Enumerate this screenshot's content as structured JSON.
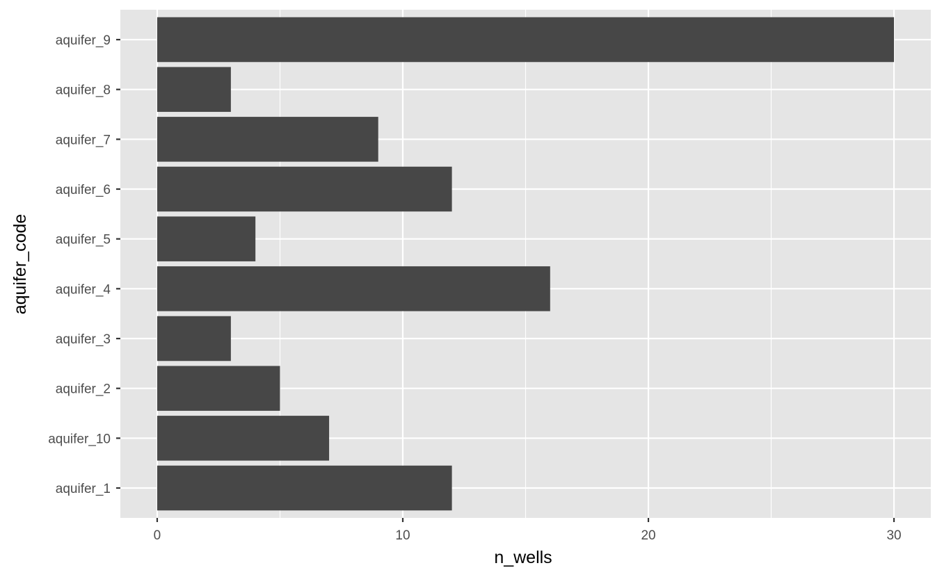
{
  "chart_data": {
    "type": "bar",
    "orientation": "horizontal",
    "xlabel": "n_wells",
    "ylabel": "aquifer_code",
    "categories": [
      "aquifer_1",
      "aquifer_10",
      "aquifer_2",
      "aquifer_3",
      "aquifer_4",
      "aquifer_5",
      "aquifer_6",
      "aquifer_7",
      "aquifer_8",
      "aquifer_9"
    ],
    "values": [
      12,
      7,
      5,
      3,
      16,
      4,
      12,
      9,
      3,
      30
    ],
    "xlim": [
      -1.5,
      31.5
    ],
    "x_ticks": [
      0,
      10,
      20,
      30
    ],
    "x_minor_ticks": [
      5,
      15,
      25
    ],
    "grid": true,
    "colors": {
      "panel_background": "#e5e5e5",
      "grid": "#ffffff",
      "bar": "#474747",
      "tick_text": "#4d4d4d",
      "tick_mark": "#333333",
      "axis_title": "#000000"
    }
  }
}
